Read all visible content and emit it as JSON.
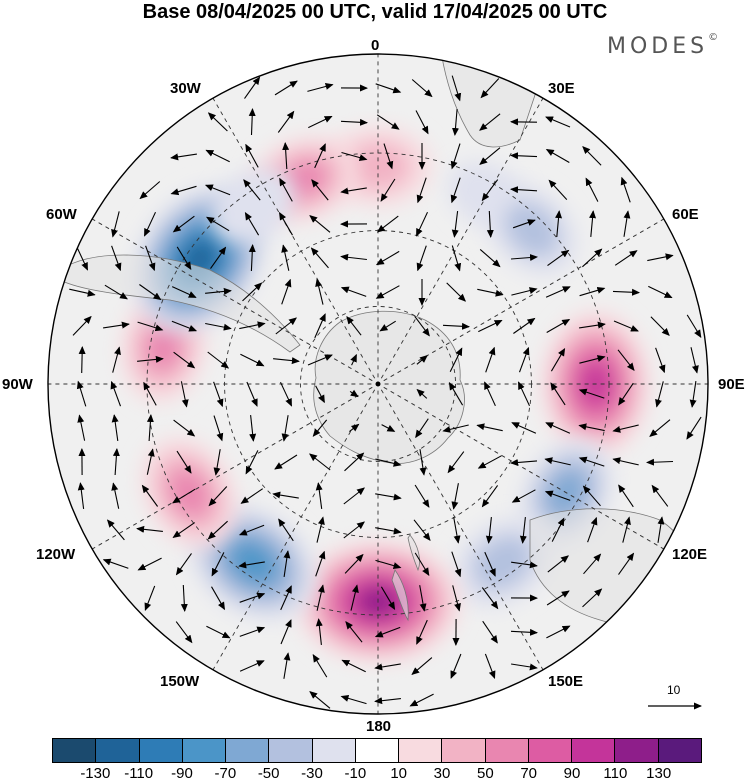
{
  "title": "Base 08/04/2025 00 UTC, valid 17/04/2025 00 UTC",
  "brand": {
    "text": "MODES",
    "mark": "©"
  },
  "longitude_labels": {
    "0": "0",
    "30E": "30E",
    "60E": "60E",
    "90E": "90E",
    "120E": "120E",
    "150E": "150E",
    "180": "180",
    "150W": "150W",
    "120W": "120W",
    "90W": "90W",
    "60W": "60W",
    "30W": "30W"
  },
  "reference_vector": {
    "label": "10"
  },
  "colorbar": {
    "colors": [
      "#1b4a6e",
      "#1f6398",
      "#2e7cb6",
      "#4b95c8",
      "#7fa8d3",
      "#b3c1df",
      "#dfe1ee",
      "#ffffff",
      "#f8dbe0",
      "#f2b3c5",
      "#e986b0",
      "#dd5ca3",
      "#c4349a",
      "#8e1e8a",
      "#5a1a7c"
    ],
    "ticks": [
      "-130",
      "-110",
      "-90",
      "-70",
      "-50",
      "-30",
      "-10",
      "10",
      "30",
      "50",
      "70",
      "90",
      "110",
      "130"
    ]
  },
  "map": {
    "projection": "south polar stereographic",
    "background_color": "#f0f0f0",
    "land_color": "#e3e3e3",
    "anomalies": [
      {
        "lon": 0,
        "value": 48
      },
      {
        "lon": 30,
        "value": -18
      },
      {
        "lon": 45,
        "value": -42
      },
      {
        "lon": 90,
        "value": 95
      },
      {
        "lon": 120,
        "value": -55
      },
      {
        "lon": 145,
        "value": -48
      },
      {
        "lon": 180,
        "value": 118
      },
      {
        "lon": -145,
        "value": -85
      },
      {
        "lon": -120,
        "value": 60
      },
      {
        "lon": -80,
        "value": 55
      },
      {
        "lon": -55,
        "value": -112
      },
      {
        "lon": -20,
        "value": 52
      },
      {
        "lon": -35,
        "value": -28
      }
    ]
  }
}
